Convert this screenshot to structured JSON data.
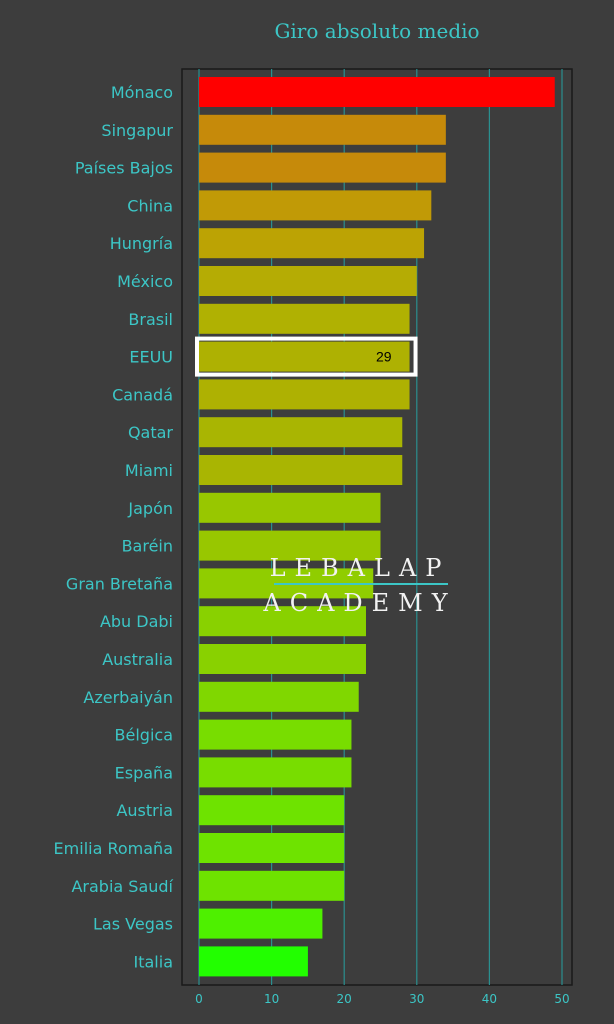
{
  "colors": {
    "background": "#3d3d3d",
    "plot_border": "#1a1a1a",
    "grid": "#2a8f8f",
    "text_accent": "#3cc6c6",
    "highlight_box": "#ffffff",
    "highlight_value": "#000000",
    "watermark_text": "#f2f2f2",
    "watermark_rule": "#3cc6c6"
  },
  "watermark": {
    "line1": "LEBALAP",
    "line2": "ACADEMY"
  },
  "chart_data": {
    "type": "bar",
    "orientation": "horizontal",
    "title": "Giro absoluto medio",
    "xlabel": "",
    "ylabel": "",
    "xlim": [
      0,
      50
    ],
    "xticks": [
      0,
      10,
      20,
      30,
      40,
      50
    ],
    "grid": true,
    "categories": [
      "Mónaco",
      "Singapur",
      "Países Bajos",
      "China",
      "Hungría",
      "México",
      "Brasil",
      "EEUU",
      "Canadá",
      "Qatar",
      "Miami",
      "Japón",
      "Baréin",
      "Gran Bretaña",
      "Abu Dabi",
      "Australia",
      "Azerbaiyán",
      "Bélgica",
      "España",
      "Austria",
      "Emilia Romaña",
      "Arabia Saudí",
      "Las Vegas",
      "Italia"
    ],
    "values": [
      49,
      34,
      34,
      32,
      31,
      30,
      29,
      29,
      29,
      28,
      28,
      25,
      25,
      24,
      23,
      23,
      22,
      21,
      21,
      20,
      20,
      20,
      17,
      15
    ],
    "bar_colors": [
      "#ff0000",
      "#c68a0a",
      "#c68a0a",
      "#c19a06",
      "#bca304",
      "#b5ac04",
      "#b0b102",
      "#aeb102",
      "#aeb102",
      "#a9b502",
      "#a9b502",
      "#98c700",
      "#98c700",
      "#90cd00",
      "#89d100",
      "#89d100",
      "#80d700",
      "#78dd00",
      "#78dd00",
      "#6ee300",
      "#6ee300",
      "#6ee300",
      "#4ef000",
      "#22ff00"
    ],
    "highlight": {
      "category": "EEUU",
      "label": "29"
    }
  }
}
